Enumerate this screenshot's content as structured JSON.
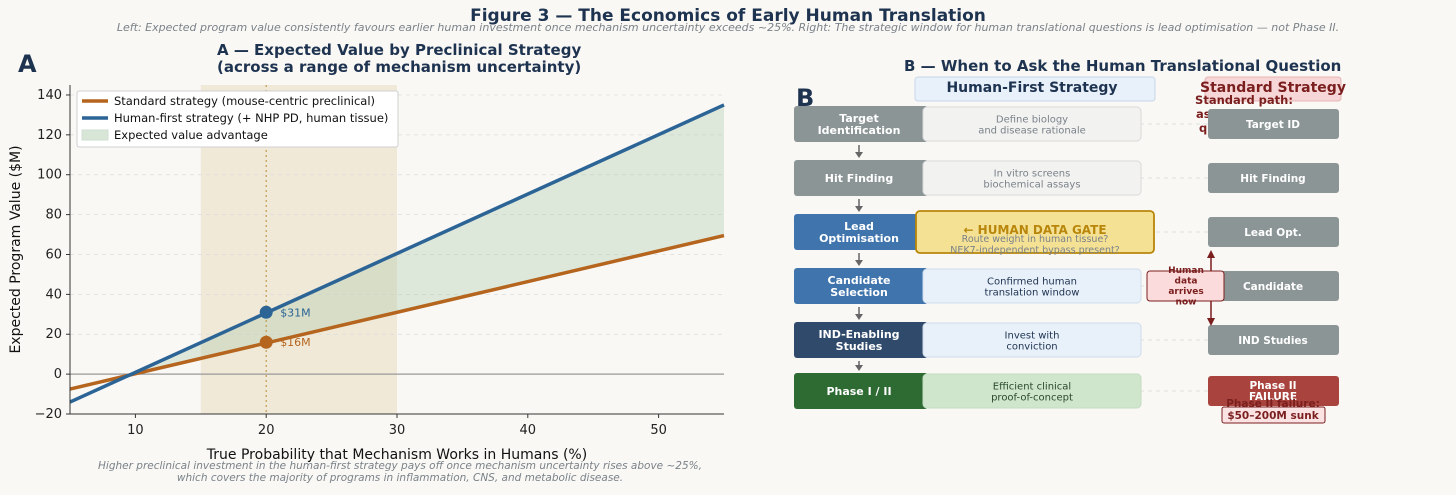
{
  "figure": {
    "title": "Figure 3 — The Economics of Early Human Translation",
    "subtitle": "Left: Expected program value consistently favours earlier human investment once mechanism uncertainty exceeds ~25%. Right: The strategic window for human translational questions is lead optimisation — not Phase II."
  },
  "panel_a": {
    "letter": "A",
    "title_line1": "A — Expected Value by Preclinical Strategy",
    "title_line2": "(across a range of mechanism uncertainty)",
    "caption_line1": "Higher preclinical investment in the human-first strategy pays off once mechanism uncertainty rises above ~25%,",
    "caption_line2": "which covers the majority of programs in inflammation, CNS, and metabolic disease."
  },
  "chart_data": {
    "type": "line",
    "xlabel": "True Probability that Mechanism Works in Humans (%)",
    "ylabel": "Expected Program Value ($M)",
    "xlim": [
      5,
      55
    ],
    "ylim": [
      -20,
      145
    ],
    "xticks": [
      10,
      20,
      30,
      40,
      50
    ],
    "yticks": [
      -20,
      0,
      20,
      40,
      60,
      80,
      100,
      120,
      140
    ],
    "grid": "horizontal dashed",
    "legend_position": "top-left",
    "series": [
      {
        "name": "Standard strategy  (mouse-centric preclinical)",
        "color": "#b5651d",
        "x": [
          5,
          55
        ],
        "y": [
          -7.5,
          69.5
        ]
      },
      {
        "name": "Human-first strategy  (+ NHP PD, human tissue)",
        "color": "#2c6496",
        "x": [
          5,
          55
        ],
        "y": [
          -14,
          135
        ]
      }
    ],
    "fill_legend": "Expected value advantage",
    "fill_color": "#a9c9a9",
    "highlight_band": {
      "x": [
        15,
        30
      ],
      "color": "#e9dcbf"
    },
    "reference_x": 20,
    "markers": [
      {
        "x": 20,
        "y": 31,
        "label": "$31M",
        "color": "#2c6496"
      },
      {
        "x": 20,
        "y": 16,
        "label": "$16M",
        "color": "#b5651d"
      }
    ]
  },
  "panel_b": {
    "letter": "B",
    "title": "B — When to Ask the Human Translational Question",
    "human_first_header": "Human-First Strategy",
    "standard_header": "Standard Strategy",
    "standard_note": "Standard path: ask the human question here",
    "stages": [
      {
        "name": "Target Identification",
        "desc": "Define biology and disease rationale",
        "std": "Target ID"
      },
      {
        "name": "Hit Finding",
        "desc": "In vitro screens biochemical assays",
        "std": "Hit Finding"
      },
      {
        "name": "Lead Optimisation",
        "desc": "← HUMAN DATA GATE",
        "desc2": "Route weight in human tissue? NEK7-independent bypass present?",
        "std": "Lead Opt."
      },
      {
        "name": "Candidate Selection",
        "desc": "Confirmed human translation window",
        "std": "Candidate"
      },
      {
        "name": "IND-Enabling Studies",
        "desc": "Invest with conviction",
        "std": "IND Studies"
      },
      {
        "name": "Phase I / II",
        "desc": "Efficient clinical proof-of-concept",
        "std": "Phase II FAILURE"
      }
    ],
    "human_data_note": "Human data arrives now",
    "phase_fail_note": "Phase II failure:",
    "sunk_cost": "$50–200M sunk"
  }
}
